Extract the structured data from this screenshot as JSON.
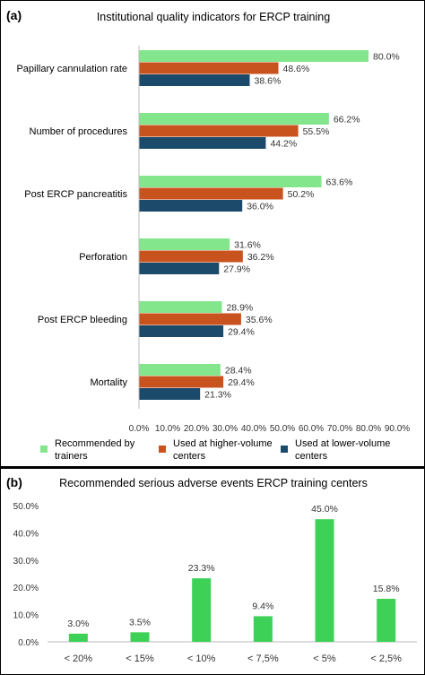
{
  "panel_a": {
    "label": "(a)",
    "title": "Institutional quality indicators for ERCP training",
    "colors": [
      "#83e68c",
      "#c8531f",
      "#1c4a6b"
    ],
    "legend_lines": [
      [
        "Recommended by",
        "trainers"
      ],
      [
        "Used at higher-volume",
        "centers"
      ],
      [
        "Used at lower-volume",
        "centers"
      ]
    ]
  },
  "panel_b": {
    "label": "(b)",
    "title": "Recommended serious adverse events ERCP training centers",
    "bar_color": "#3dd158"
  },
  "chart_data": [
    {
      "type": "bar",
      "orientation": "horizontal",
      "title": "Institutional quality indicators for ERCP training",
      "categories": [
        "Papillary cannulation rate",
        "Number of procedures",
        "Post ERCP pancreatitis",
        "Perforation",
        "Post ERCP bleeding",
        "Mortality"
      ],
      "series": [
        {
          "name": "Recommended by trainers",
          "values": [
            80.0,
            66.2,
            63.6,
            31.6,
            28.9,
            28.4
          ]
        },
        {
          "name": "Used at higher-volume centers",
          "values": [
            48.6,
            55.5,
            50.2,
            36.2,
            35.6,
            29.4
          ]
        },
        {
          "name": "Used at lower-volume centers",
          "values": [
            38.6,
            44.2,
            36.0,
            27.9,
            29.4,
            21.3
          ]
        }
      ],
      "xlim": [
        0,
        90
      ],
      "xticks": [
        "0.0%",
        "10.0%",
        "20.0%",
        "30.0%",
        "40.0%",
        "50.0%",
        "60.0%",
        "70.0%",
        "80.0%",
        "90.0%"
      ],
      "value_labels": [
        [
          "80.0%",
          "66.2%",
          "63.6%",
          "31.6%",
          "28.9%",
          "28.4%"
        ],
        [
          "48.6%",
          "55.5%",
          "50.2%",
          "36.2%",
          "35.6%",
          "29.4%"
        ],
        [
          "38.6%",
          "44.2%",
          "36.0%",
          "27.9%",
          "29.4%",
          "21.3%"
        ]
      ],
      "legend": "bottom",
      "grid": false
    },
    {
      "type": "bar",
      "title": "Recommended serious adverse events ERCP training centers",
      "categories": [
        "< 20%",
        "< 15%",
        "< 10%",
        "< 7,5%",
        "< 5%",
        "< 2,5%"
      ],
      "values": [
        3.0,
        3.5,
        23.3,
        9.4,
        45.0,
        15.8
      ],
      "value_labels": [
        "3.0%",
        "3.5%",
        "23.3%",
        "9.4%",
        "45.0%",
        "15.8%"
      ],
      "ylim": [
        0,
        50
      ],
      "yticks": [
        "0.0%",
        "10.0%",
        "20.0%",
        "30.0%",
        "40.0%",
        "50.0%"
      ],
      "grid": false
    }
  ]
}
